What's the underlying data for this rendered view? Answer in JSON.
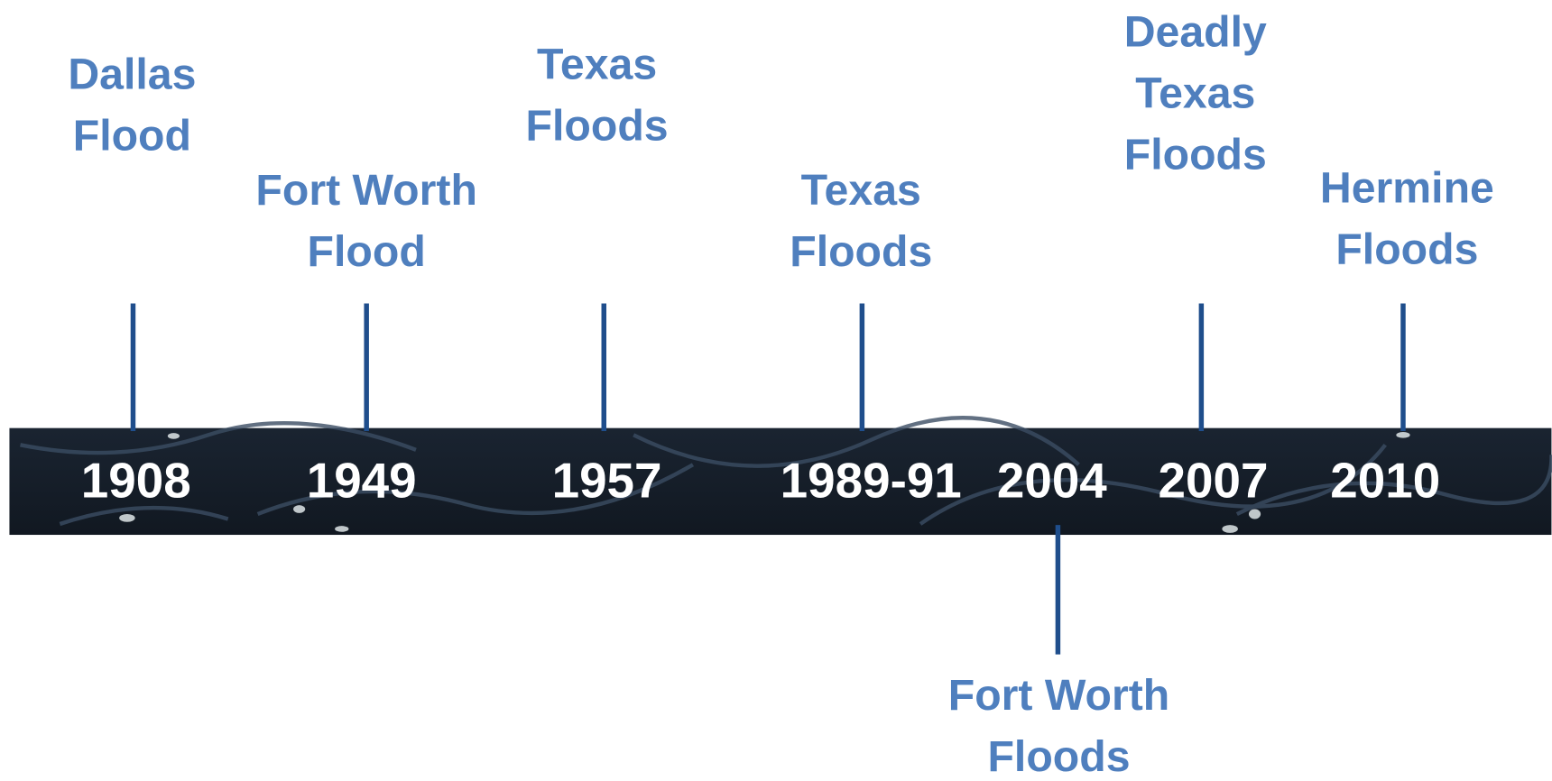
{
  "events": [
    {
      "year": "1908",
      "label": [
        "Dallas",
        "Flood"
      ]
    },
    {
      "year": "1949",
      "label": [
        "Fort Worth",
        "Flood"
      ]
    },
    {
      "year": "1957",
      "label": [
        "Texas",
        "Floods"
      ]
    },
    {
      "year": "1989-91",
      "label": [
        "Texas",
        "Floods"
      ]
    },
    {
      "year": "2004",
      "label": [
        "Fort Worth",
        "Floods"
      ]
    },
    {
      "year": "2007",
      "label": [
        "Deadly",
        "Texas",
        "Floods"
      ]
    },
    {
      "year": "2010",
      "label": [
        "Hermine",
        "Floods"
      ]
    }
  ]
}
